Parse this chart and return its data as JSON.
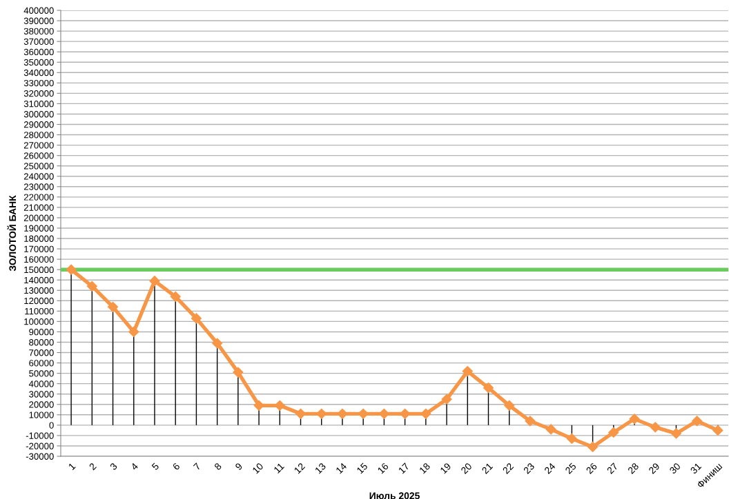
{
  "chart_data": {
    "type": "line",
    "xlabel": "Июль 2025",
    "ylabel": "ЗОЛОТОЙ БАНК",
    "categories": [
      "1",
      "2",
      "3",
      "4",
      "5",
      "6",
      "7",
      "8",
      "9",
      "10",
      "11",
      "12",
      "13",
      "14",
      "15",
      "16",
      "17",
      "18",
      "19",
      "20",
      "21",
      "22",
      "23",
      "24",
      "25",
      "26",
      "27",
      "28",
      "29",
      "30",
      "31",
      "Финиш"
    ],
    "series": [
      {
        "color": "#f79646",
        "values": [
          150000,
          134000,
          114000,
          90000,
          139000,
          124000,
          103000,
          79000,
          51000,
          19000,
          19000,
          11000,
          11000,
          11000,
          11000,
          11000,
          11000,
          11000,
          25000,
          52000,
          36000,
          19000,
          4000,
          -4000,
          -13000,
          -21000,
          -7000,
          6000,
          -2000,
          -8000,
          4000,
          -5000
        ]
      },
      {
        "type": "lollipop",
        "color": "#f79646",
        "marker": "diamond",
        "values": [
          150000,
          134000,
          114000,
          90000,
          139000,
          124000,
          103000,
          79000,
          51000,
          19000,
          19000,
          11000,
          11000,
          11000,
          11000,
          11000,
          11000,
          11000,
          25000,
          52000,
          36000,
          19000,
          4000,
          -4000,
          -13000,
          -21000,
          -7000,
          6000,
          -2000,
          -8000,
          4000,
          -5000
        ]
      }
    ],
    "ylim": [
      -30000,
      400000
    ],
    "yticks": [
      -30000,
      -20000,
      -10000,
      0,
      10000,
      20000,
      30000,
      40000,
      50000,
      60000,
      70000,
      80000,
      90000,
      100000,
      110000,
      120000,
      130000,
      140000,
      150000,
      160000,
      170000,
      180000,
      190000,
      200000,
      210000,
      220000,
      230000,
      240000,
      250000,
      260000,
      270000,
      280000,
      290000,
      300000,
      310000,
      320000,
      330000,
      340000,
      350000,
      360000,
      370000,
      380000,
      390000,
      400000
    ],
    "ref_lines": [
      {
        "axis": "y",
        "value": 150000,
        "color": "#6ccb5f"
      }
    ],
    "grid": "y",
    "line_style": "solid"
  }
}
